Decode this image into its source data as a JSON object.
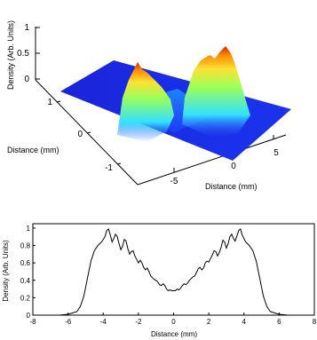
{
  "chart_data": [
    {
      "type": "surface",
      "xlabel": "Distance (mm)",
      "ylabel": "Distance (mm)",
      "zlabel": "Density (Arb. Units)",
      "x_ticks": [
        "-5",
        "0",
        "5"
      ],
      "y_ticks": [
        "-1",
        "0",
        "1"
      ],
      "z_ticks": [
        "0",
        "0.5",
        "1"
      ],
      "zlim": [
        0,
        1
      ],
      "colormap": "jet",
      "colors": {
        "low": "#1b23d8",
        "mid": "#32e0ff",
        "high": "#fbe234",
        "peak": "#ff5a00"
      },
      "grid": false
    },
    {
      "type": "line",
      "xlabel": "Distance (mm)",
      "ylabel": "Density (Arb. Units)",
      "xlim": [
        -8,
        8
      ],
      "ylim": [
        0,
        1.05
      ],
      "x_ticks": [
        "-8",
        "-6",
        "-4",
        "-2",
        "0",
        "2",
        "4",
        "6",
        "8"
      ],
      "y_ticks": [
        "0",
        "0.2",
        "0.4",
        "0.6",
        "0.8",
        "1"
      ],
      "grid": false,
      "series": [
        {
          "color": "#000000",
          "x": [
            -8,
            -6.5,
            -6,
            -5.5,
            -5.3,
            -5.1,
            -4.9,
            -4.7,
            -4.5,
            -4.3,
            -4.1,
            -3.9,
            -3.8,
            -3.7,
            -3.6,
            -3.5,
            -3.4,
            -3.3,
            -3.2,
            -3.1,
            -3.0,
            -2.9,
            -2.8,
            -2.7,
            -2.6,
            -2.5,
            -2.4,
            -2.3,
            -2.2,
            -2.1,
            -2.0,
            -1.9,
            -1.8,
            -1.7,
            -1.6,
            -1.5,
            -1.4,
            -1.3,
            -1.2,
            -1.1,
            -1.0,
            -0.9,
            -0.8,
            -0.7,
            -0.6,
            -0.5,
            -0.4,
            -0.3,
            -0.2,
            -0.1,
            0,
            0.1,
            0.2,
            0.3,
            0.4,
            0.5,
            0.6,
            0.7,
            0.8,
            0.9,
            1.0,
            1.1,
            1.2,
            1.3,
            1.4,
            1.5,
            1.6,
            1.7,
            1.8,
            1.9,
            2.0,
            2.1,
            2.2,
            2.3,
            2.4,
            2.5,
            2.6,
            2.7,
            2.8,
            2.9,
            3.0,
            3.1,
            3.2,
            3.3,
            3.4,
            3.5,
            3.6,
            3.7,
            3.8,
            3.9,
            4.1,
            4.3,
            4.5,
            4.7,
            4.9,
            5.1,
            5.3,
            5.5,
            6,
            6.5,
            8
          ],
          "y": [
            0.0,
            0.0,
            0.01,
            0.04,
            0.1,
            0.22,
            0.42,
            0.62,
            0.74,
            0.8,
            0.84,
            0.9,
            0.97,
            0.99,
            0.92,
            0.84,
            0.88,
            0.93,
            0.9,
            0.82,
            0.75,
            0.79,
            0.87,
            0.85,
            0.76,
            0.7,
            0.73,
            0.74,
            0.68,
            0.64,
            0.6,
            0.63,
            0.6,
            0.55,
            0.52,
            0.54,
            0.5,
            0.45,
            0.43,
            0.41,
            0.4,
            0.38,
            0.35,
            0.34,
            0.36,
            0.34,
            0.3,
            0.28,
            0.29,
            0.28,
            0.28,
            0.28,
            0.3,
            0.29,
            0.31,
            0.34,
            0.36,
            0.35,
            0.37,
            0.4,
            0.42,
            0.44,
            0.45,
            0.49,
            0.53,
            0.55,
            0.52,
            0.54,
            0.6,
            0.62,
            0.61,
            0.65,
            0.69,
            0.74,
            0.73,
            0.68,
            0.72,
            0.78,
            0.86,
            0.84,
            0.77,
            0.82,
            0.9,
            0.93,
            0.88,
            0.85,
            0.91,
            0.97,
            0.99,
            0.92,
            0.84,
            0.8,
            0.74,
            0.62,
            0.42,
            0.22,
            0.1,
            0.04,
            0.01,
            0.0,
            0.0
          ]
        }
      ]
    }
  ]
}
